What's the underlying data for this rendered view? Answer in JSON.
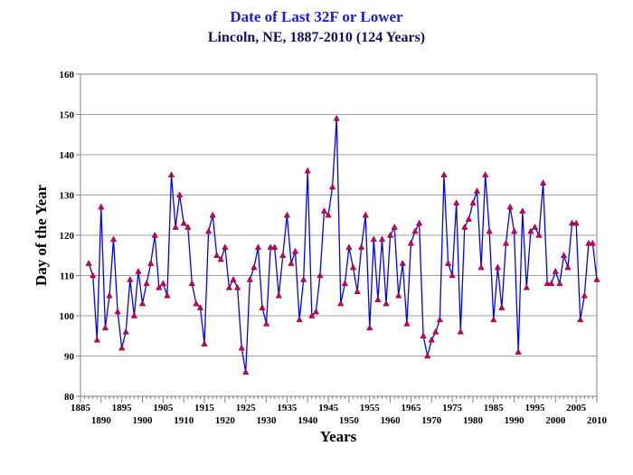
{
  "chart_data": {
    "type": "line",
    "title": "Date of Last 32F or Lower",
    "subtitle": "Lincoln, NE, 1887-2010 (124 Years)",
    "xlabel": "Years",
    "ylabel": "Day of the Year",
    "xlim": [
      1885,
      2010
    ],
    "ylim": [
      80,
      160
    ],
    "x_ticks_upper": [
      "1885",
      "1895",
      "1905",
      "1915",
      "1925",
      "1935",
      "1945",
      "1955",
      "1965",
      "1975",
      "1985",
      "1995",
      "2005"
    ],
    "x_ticks_lower": [
      "1890",
      "1900",
      "1910",
      "1920",
      "1930",
      "1940",
      "1950",
      "1960",
      "1970",
      "1980",
      "1990",
      "2000",
      "2010"
    ],
    "y_ticks": [
      "80",
      "90",
      "100",
      "110",
      "120",
      "130",
      "140",
      "150",
      "160"
    ],
    "grid": "horizontal",
    "line_color": "#0000ff",
    "marker_color": "#cc0055",
    "x": [
      1887,
      1888,
      1889,
      1890,
      1891,
      1892,
      1893,
      1894,
      1895,
      1896,
      1897,
      1898,
      1899,
      1900,
      1901,
      1902,
      1903,
      1904,
      1905,
      1906,
      1907,
      1908,
      1909,
      1910,
      1911,
      1912,
      1913,
      1914,
      1915,
      1916,
      1917,
      1918,
      1919,
      1920,
      1921,
      1922,
      1923,
      1924,
      1925,
      1926,
      1927,
      1928,
      1929,
      1930,
      1931,
      1932,
      1933,
      1934,
      1935,
      1936,
      1937,
      1938,
      1939,
      1940,
      1941,
      1942,
      1943,
      1944,
      1945,
      1946,
      1947,
      1948,
      1949,
      1950,
      1951,
      1952,
      1953,
      1954,
      1955,
      1956,
      1957,
      1958,
      1959,
      1960,
      1961,
      1962,
      1963,
      1964,
      1965,
      1966,
      1967,
      1968,
      1969,
      1970,
      1971,
      1972,
      1973,
      1974,
      1975,
      1976,
      1977,
      1978,
      1979,
      1980,
      1981,
      1982,
      1983,
      1984,
      1985,
      1986,
      1987,
      1988,
      1989,
      1990,
      1991,
      1992,
      1993,
      1994,
      1995,
      1996,
      1997,
      1998,
      1999,
      2000,
      2001,
      2002,
      2003,
      2004,
      2005,
      2006,
      2007,
      2008,
      2009,
      2010
    ],
    "values": [
      113,
      110,
      94,
      127,
      97,
      105,
      119,
      101,
      92,
      96,
      109,
      100,
      111,
      103,
      108,
      113,
      120,
      107,
      108,
      105,
      135,
      122,
      130,
      123,
      122,
      108,
      103,
      102,
      93,
      121,
      125,
      115,
      114,
      117,
      107,
      109,
      107,
      92,
      86,
      109,
      112,
      117,
      102,
      98,
      117,
      117,
      105,
      115,
      125,
      113,
      116,
      99,
      109,
      136,
      100,
      101,
      110,
      126,
      125,
      132,
      149,
      103,
      108,
      117,
      112,
      106,
      117,
      125,
      97,
      119,
      104,
      119,
      103,
      120,
      122,
      105,
      113,
      98,
      118,
      121,
      123,
      95,
      90,
      94,
      96,
      99,
      135,
      113,
      110,
      128,
      96,
      122,
      124,
      128,
      131,
      112,
      135,
      121,
      99,
      112,
      102,
      118,
      127,
      121,
      91,
      126,
      107,
      121,
      122,
      120,
      133,
      108,
      108,
      111,
      108,
      115,
      112,
      123,
      123,
      99,
      105,
      118,
      118,
      109
    ]
  }
}
